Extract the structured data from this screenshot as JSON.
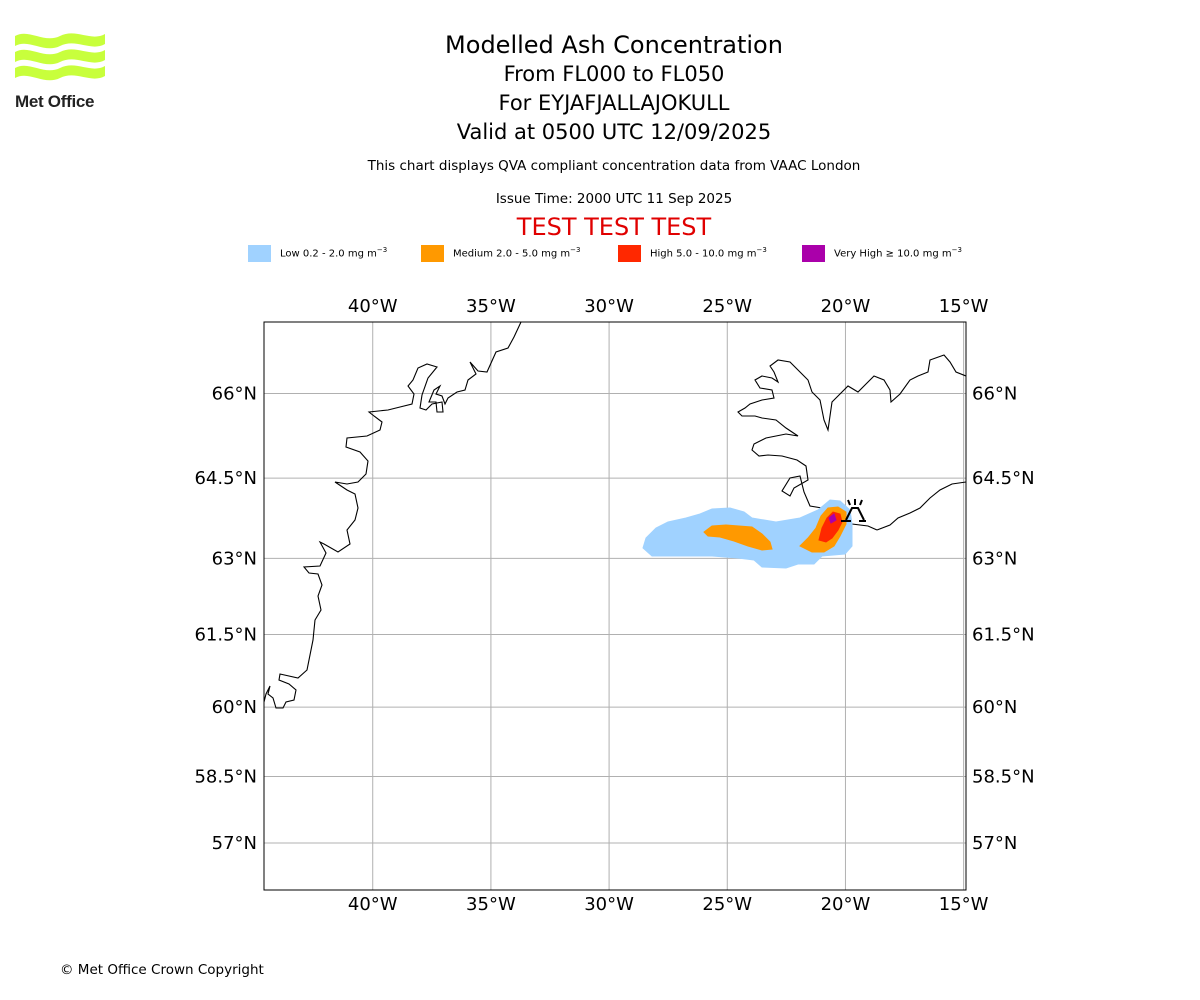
{
  "branding": {
    "logo_text": "Met Office",
    "copyright": "© Met Office Crown Copyright"
  },
  "titles": {
    "main": "Modelled Ash Concentration",
    "levels": "From FL000 to FL050",
    "volcano": "For EYJAFJALLAJOKULL",
    "valid": "Valid at 0500 UTC 12/09/2025",
    "description": "This chart displays QVA compliant concentration data from VAAC London",
    "issue_time": "Issue Time: 2000 UTC 11 Sep 2025",
    "test_banner": "TEST TEST TEST"
  },
  "legend": [
    {
      "label": "Low 0.2 - 2.0 mg m",
      "unit_exp": "−3",
      "color": "#a0d2ff"
    },
    {
      "label": "Medium 2.0 - 5.0 mg m",
      "unit_exp": "−3",
      "color": "#ff9900"
    },
    {
      "label": "High 5.0 - 10.0 mg m",
      "unit_exp": "−3",
      "color": "#ff2800"
    },
    {
      "label": "Very High  ≥  10.0 mg m",
      "unit_exp": "−3",
      "color": "#aa00aa"
    }
  ],
  "map": {
    "lon_ticks": [
      -40,
      -35,
      -30,
      -25,
      -20,
      -15
    ],
    "lon_labels": [
      "40°W",
      "35°W",
      "30°W",
      "25°W",
      "20°W",
      "15°W"
    ],
    "lat_ticks": [
      66,
      64.5,
      63,
      61.5,
      60,
      58.5,
      57
    ],
    "lat_labels": [
      "66°N",
      "64.5°N",
      "63°N",
      "61.5°N",
      "60°N",
      "58.5°N",
      "57°N"
    ],
    "lon_range": [
      -44.6,
      -14.9
    ],
    "lat_range": [
      55.9,
      67.2
    ],
    "gridlines": true,
    "volcano_location": {
      "lon": -19.6,
      "lat": 63.63,
      "icon": "volcano-icon"
    },
    "ash_colors": {
      "low": "#a0d2ff",
      "medium": "#ff9900",
      "high": "#ff2800",
      "very_high": "#aa00aa"
    },
    "coastline_color": "#000000"
  }
}
